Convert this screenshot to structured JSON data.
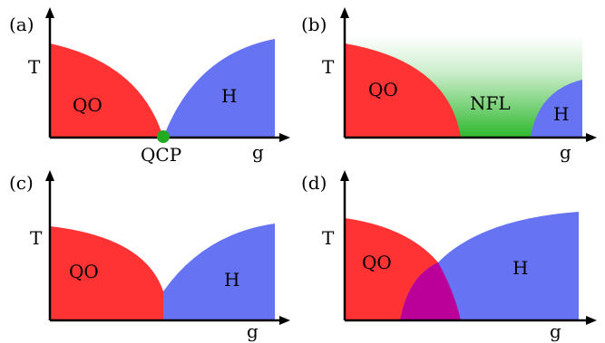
{
  "colors": {
    "qo": "#ff3333",
    "h": "#6673f2",
    "nfl": "#33bb33",
    "qcp_dot": "#22aa22",
    "overlap": "#bb0099",
    "axis": "#000000"
  },
  "panels": [
    {
      "label": "(a)",
      "y_axis_label": "T",
      "x_axis_label": "g",
      "regions": [
        "QO",
        "H"
      ],
      "point_label": "QCP"
    },
    {
      "label": "(b)",
      "y_axis_label": "T",
      "x_axis_label": "g",
      "regions": [
        "QO",
        "NFL",
        "H"
      ]
    },
    {
      "label": "(c)",
      "y_axis_label": "T",
      "x_axis_label": "g",
      "regions": [
        "QO",
        "H"
      ]
    },
    {
      "label": "(d)",
      "y_axis_label": "T",
      "x_axis_label": "g",
      "regions": [
        "QO",
        "H"
      ]
    }
  ]
}
